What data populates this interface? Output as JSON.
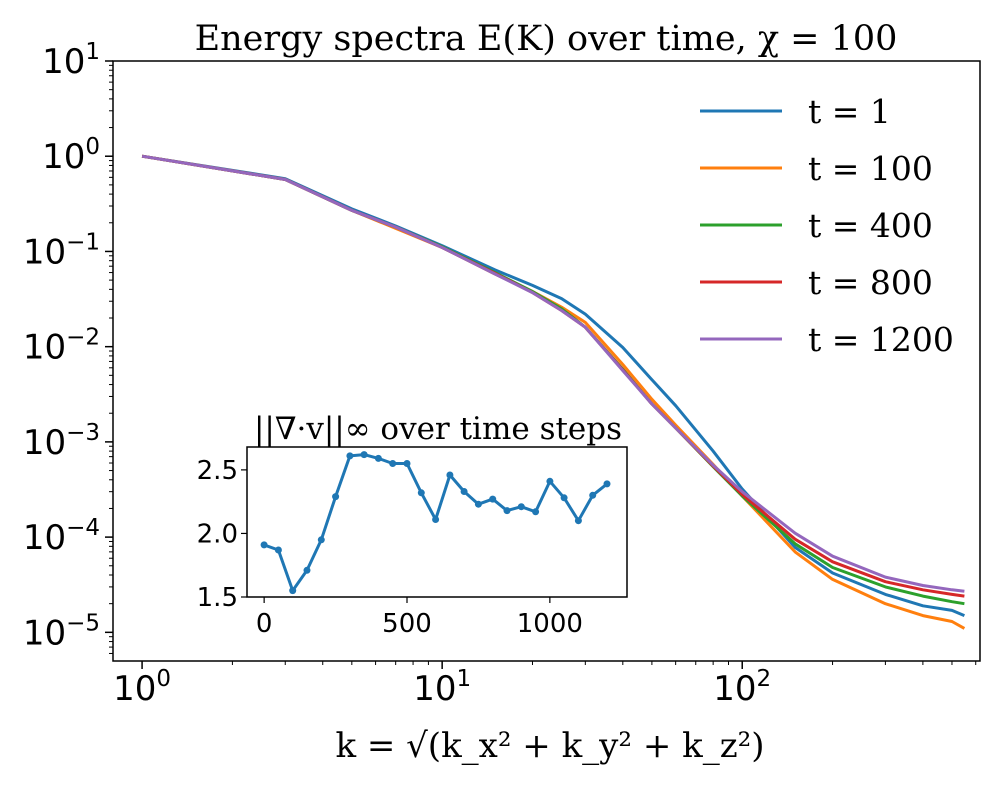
{
  "chart_data": [
    {
      "id": "main",
      "type": "line",
      "title": "Energy spectra E(K) over time, χ = 100",
      "xlabel": "k = √(k_x² + k_y² + k_z²)",
      "ylabel": "",
      "xscale": "log",
      "yscale": "log",
      "xlim": [
        0.8,
        620
      ],
      "ylim": [
        5e-06,
        10
      ],
      "xticks": [
        {
          "value": 1,
          "base": "10",
          "exp": "0"
        },
        {
          "value": 10,
          "base": "10",
          "exp": "1"
        },
        {
          "value": 100,
          "base": "10",
          "exp": "2"
        }
      ],
      "yticks": [
        {
          "value": 10,
          "base": "10",
          "exp": "1"
        },
        {
          "value": 1,
          "base": "10",
          "exp": "0"
        },
        {
          "value": 0.1,
          "base": "10",
          "exp": "−1"
        },
        {
          "value": 0.01,
          "base": "10",
          "exp": "−2"
        },
        {
          "value": 0.001,
          "base": "10",
          "exp": "−3"
        },
        {
          "value": 0.0001,
          "base": "10",
          "exp": "−4"
        },
        {
          "value": 1e-05,
          "base": "10",
          "exp": "−5"
        }
      ],
      "legend_position": "top-right",
      "x": [
        1,
        3,
        5,
        7,
        10,
        15,
        20,
        25,
        30,
        40,
        50,
        60,
        80,
        100,
        150,
        200,
        300,
        400,
        500,
        550
      ],
      "series": [
        {
          "name": "t = 1",
          "color": "#1f77b4",
          "values": [
            1.0,
            0.58,
            0.28,
            0.185,
            0.115,
            0.064,
            0.044,
            0.032,
            0.022,
            0.0098,
            0.0045,
            0.0024,
            0.0008,
            0.00032,
            7.8e-05,
            4.2e-05,
            2.5e-05,
            1.9e-05,
            1.7e-05,
            1.5e-05
          ]
        },
        {
          "name": "t = 100",
          "color": "#ff7f0e",
          "values": [
            1.0,
            0.57,
            0.27,
            0.175,
            0.11,
            0.058,
            0.038,
            0.026,
            0.018,
            0.0065,
            0.0028,
            0.0015,
            0.00058,
            0.00027,
            7e-05,
            3.6e-05,
            2e-05,
            1.5e-05,
            1.3e-05,
            1.1e-05
          ]
        },
        {
          "name": "t = 400",
          "color": "#2ca02c",
          "values": [
            1.0,
            0.57,
            0.27,
            0.18,
            0.112,
            0.06,
            0.038,
            0.025,
            0.016,
            0.0058,
            0.0025,
            0.0014,
            0.00055,
            0.00027,
            8.5e-05,
            4.8e-05,
            3e-05,
            2.4e-05,
            2.1e-05,
            2e-05
          ]
        },
        {
          "name": "t = 800",
          "color": "#d62728",
          "values": [
            1.0,
            0.57,
            0.27,
            0.18,
            0.11,
            0.059,
            0.037,
            0.024,
            0.016,
            0.0057,
            0.0025,
            0.0014,
            0.00056,
            0.00028,
            9.5e-05,
            5.5e-05,
            3.4e-05,
            2.8e-05,
            2.5e-05,
            2.4e-05
          ]
        },
        {
          "name": "t = 1200",
          "color": "#9467bd",
          "values": [
            1.0,
            0.57,
            0.27,
            0.18,
            0.11,
            0.058,
            0.037,
            0.024,
            0.016,
            0.0056,
            0.0025,
            0.0014,
            0.00057,
            0.0003,
            0.00011,
            6.3e-05,
            3.8e-05,
            3.1e-05,
            2.8e-05,
            2.7e-05
          ]
        }
      ]
    },
    {
      "id": "inset",
      "type": "line",
      "title": "||∇·v||∞ over time steps",
      "xlabel": "",
      "ylabel": "",
      "xlim": [
        -60,
        1270
      ],
      "ylim": [
        1.5,
        2.68
      ],
      "xticks": [
        0,
        500,
        1000
      ],
      "ytick_labels": [
        "1.5",
        "2.0",
        "2.5"
      ],
      "yticks": [
        1.5,
        2.0,
        2.5
      ],
      "color": "#1f77b4",
      "x": [
        0,
        50,
        100,
        150,
        200,
        250,
        300,
        350,
        400,
        450,
        500,
        550,
        600,
        650,
        700,
        750,
        800,
        850,
        900,
        950,
        1000,
        1050,
        1100,
        1150,
        1200
      ],
      "values": [
        1.91,
        1.87,
        1.55,
        1.71,
        1.95,
        2.29,
        2.61,
        2.62,
        2.59,
        2.55,
        2.55,
        2.32,
        2.11,
        2.46,
        2.33,
        2.23,
        2.27,
        2.18,
        2.21,
        2.17,
        2.41,
        2.28,
        2.1,
        2.3,
        2.39
      ]
    }
  ]
}
